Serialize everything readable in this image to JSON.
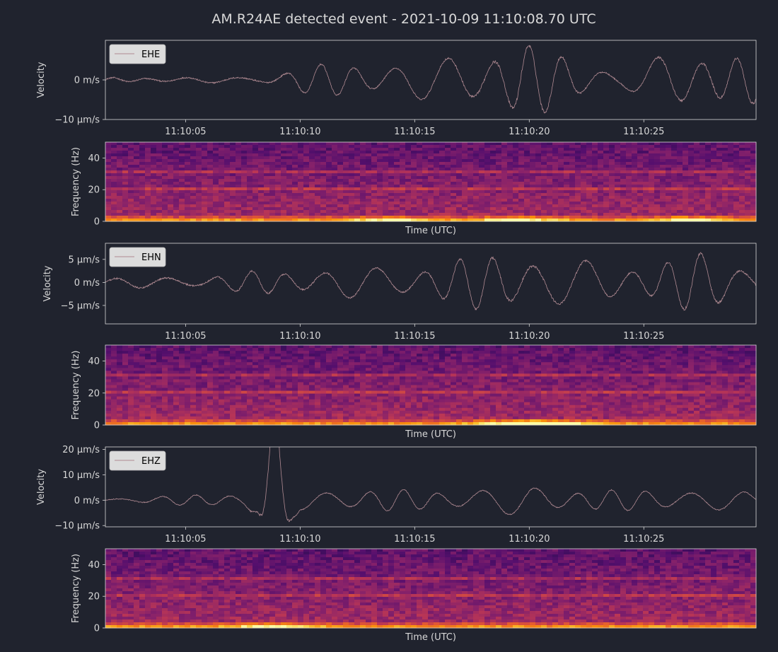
{
  "title": "AM.R24AE detected event - 2021-10-09 11:10:08.70 UTC",
  "colors": {
    "background": "#20232e",
    "axis": "#d8d8d8",
    "trace": "#b08a92",
    "legend_bg": "#dcdcdc",
    "legend_text": "#000000",
    "spectrogram_colormap": "inferno"
  },
  "chart_data": [
    {
      "type": "line",
      "channel": "EHE",
      "legend": [
        "EHE"
      ],
      "legend_position": "top-left",
      "ylabel": "Velocity",
      "ylim": [
        -10,
        10
      ],
      "y_ticks": [
        {
          "value": 0,
          "label": "0 m/s"
        },
        {
          "value": -10,
          "label": "−10 μm/s"
        }
      ],
      "x_tick_labels": [
        "11:10:05",
        "11:10:10",
        "11:10:15",
        "11:10:20",
        "11:10:25"
      ],
      "x_ticks_seconds": [
        5,
        10,
        15,
        20,
        25
      ],
      "xlim": [
        1.5,
        29.9
      ],
      "envelope": {
        "t": [
          1.5,
          8,
          9,
          10,
          12,
          14,
          16,
          17.5,
          19.5,
          20.5,
          22,
          24,
          26,
          28,
          29.9
        ],
        "amp": [
          0.6,
          0.8,
          1.8,
          3.5,
          4.5,
          4.5,
          5.5,
          7.5,
          10,
          8.5,
          5.8,
          2.5,
          6.5,
          8.5,
          6
        ]
      }
    },
    {
      "type": "heatmap",
      "channel": "EHE",
      "ylabel": "Frequency (Hz)",
      "xlabel": "Time (UTC)",
      "ylim": [
        0,
        50
      ],
      "y_ticks": [
        0,
        20,
        40
      ],
      "bands_hz": [
        21,
        31
      ],
      "low_freq_hotspots": [
        14,
        19.5,
        27
      ]
    },
    {
      "type": "line",
      "channel": "EHN",
      "legend": [
        "EHN"
      ],
      "legend_position": "top-left",
      "ylabel": "Velocity",
      "ylim": [
        -9,
        8.5
      ],
      "y_ticks": [
        {
          "value": 5,
          "label": "5 μm/s"
        },
        {
          "value": 0,
          "label": "0 m/s"
        },
        {
          "value": -5,
          "label": "−5 μm/s"
        }
      ],
      "x_tick_labels": [
        "11:10:05",
        "11:10:10",
        "11:10:15",
        "11:10:20",
        "11:10:25"
      ],
      "x_ticks_seconds": [
        5,
        10,
        15,
        20,
        25
      ],
      "xlim": [
        1.5,
        29.9
      ],
      "envelope": {
        "t": [
          1.5,
          6,
          8,
          10,
          12,
          14,
          16,
          18.5,
          20,
          22,
          24,
          26,
          27.5,
          29.9
        ],
        "amp": [
          1,
          1.5,
          2.5,
          3,
          3.5,
          3.5,
          4.5,
          6.5,
          7,
          5,
          4,
          5.5,
          6.5,
          4
        ]
      }
    },
    {
      "type": "heatmap",
      "channel": "EHN",
      "ylabel": "Frequency (Hz)",
      "xlabel": "Time (UTC)",
      "ylim": [
        0,
        50
      ],
      "y_ticks": [
        0,
        20,
        40
      ],
      "bands_hz": [
        21,
        31
      ],
      "low_freq_hotspots": [
        19.5,
        21
      ]
    },
    {
      "type": "line",
      "channel": "EHZ",
      "legend": [
        "EHZ"
      ],
      "legend_position": "top-left",
      "ylabel": "Velocity",
      "ylim": [
        -10.5,
        21
      ],
      "y_ticks": [
        {
          "value": 20,
          "label": "20 μm/s"
        },
        {
          "value": 10,
          "label": "10 μm/s"
        },
        {
          "value": 0,
          "label": "0 m/s"
        },
        {
          "value": -10,
          "label": "−10 μm/s"
        }
      ],
      "x_tick_labels": [
        "11:10:05",
        "11:10:10",
        "11:10:15",
        "11:10:20",
        "11:10:25"
      ],
      "x_ticks_seconds": [
        5,
        10,
        15,
        20,
        25
      ],
      "xlim": [
        1.5,
        29.9
      ],
      "envelope": {
        "t": [
          1.5,
          5,
          7.5,
          8.9,
          10,
          12,
          15,
          20,
          22,
          24,
          27,
          29.9
        ],
        "amp": [
          0.8,
          2,
          3.5,
          19,
          4,
          5,
          4,
          6,
          5,
          4,
          5,
          3
        ]
      },
      "spike": {
        "t": 8.9,
        "value": 19
      }
    },
    {
      "type": "heatmap",
      "channel": "EHZ",
      "ylabel": "Frequency (Hz)",
      "xlabel": "Time (UTC)",
      "ylim": [
        0,
        50
      ],
      "y_ticks": [
        0,
        20,
        40
      ],
      "bands_hz": [
        21,
        31
      ],
      "low_freq_hotspots": [
        8.9
      ]
    }
  ]
}
